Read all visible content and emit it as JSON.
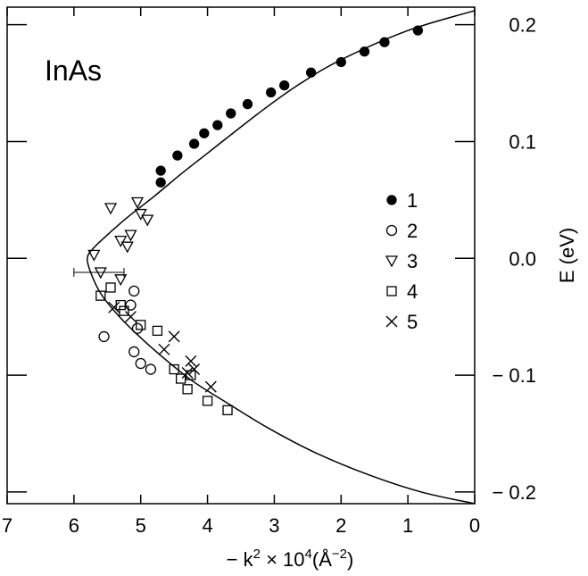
{
  "chart_data": {
    "type": "scatter",
    "panel_label": "InAs",
    "xlabel": {
      "prefix": "− k",
      "sup1": "2",
      "mid": " × 10",
      "sup2": "4",
      "unit_open": "(Å",
      "sup3": "−2",
      "unit_close": ")"
    },
    "ylabel": "E (eV)",
    "x_axis_reversed": true,
    "xlim": [
      0,
      7
    ],
    "ylim": [
      -0.21,
      0.215
    ],
    "x_ticks": [
      {
        "value": 7,
        "label": "7"
      },
      {
        "value": 6,
        "label": "6"
      },
      {
        "value": 5,
        "label": "5"
      },
      {
        "value": 4,
        "label": "4"
      },
      {
        "value": 3,
        "label": "3"
      },
      {
        "value": 2,
        "label": "2"
      },
      {
        "value": 1,
        "label": "1"
      },
      {
        "value": 0,
        "label": "0"
      }
    ],
    "y_ticks": [
      {
        "value": 0.2,
        "label": "0.2"
      },
      {
        "value": 0.1,
        "label": "0.1"
      },
      {
        "value": 0.0,
        "label": "0.0"
      },
      {
        "value": -0.1,
        "label": "− 0.1"
      },
      {
        "value": -0.2,
        "label": "− 0.2"
      }
    ],
    "y_axis_side": "right",
    "legend_position": "right",
    "curve": {
      "description": "continuous fit",
      "points": [
        [
          0.0,
          0.212
        ],
        [
          1.0,
          0.195
        ],
        [
          2.0,
          0.17
        ],
        [
          2.6,
          0.15
        ],
        [
          3.1,
          0.13
        ],
        [
          3.6,
          0.108
        ],
        [
          4.0,
          0.09
        ],
        [
          4.4,
          0.072
        ],
        [
          4.8,
          0.053
        ],
        [
          5.2,
          0.035
        ],
        [
          5.5,
          0.02
        ],
        [
          5.72,
          0.008
        ],
        [
          5.8,
          0.0
        ],
        [
          5.75,
          -0.012
        ],
        [
          5.6,
          -0.03
        ],
        [
          5.35,
          -0.048
        ],
        [
          5.0,
          -0.068
        ],
        [
          4.6,
          -0.088
        ],
        [
          4.2,
          -0.106
        ],
        [
          3.7,
          -0.124
        ],
        [
          3.1,
          -0.145
        ],
        [
          2.4,
          -0.166
        ],
        [
          1.6,
          -0.185
        ],
        [
          0.8,
          -0.2
        ],
        [
          0.0,
          -0.21
        ]
      ]
    },
    "series": [
      {
        "name": "1",
        "marker": "filled-circle",
        "points": [
          [
            0.85,
            0.195
          ],
          [
            1.35,
            0.185
          ],
          [
            1.65,
            0.177
          ],
          [
            2.0,
            0.168
          ],
          [
            2.45,
            0.159
          ],
          [
            2.85,
            0.148
          ],
          [
            3.05,
            0.142
          ],
          [
            3.4,
            0.132
          ],
          [
            3.65,
            0.124
          ],
          [
            3.85,
            0.114
          ],
          [
            4.05,
            0.107
          ],
          [
            4.2,
            0.098
          ],
          [
            4.45,
            0.088
          ],
          [
            4.7,
            0.075
          ],
          [
            4.7,
            0.065
          ]
        ]
      },
      {
        "name": "2",
        "marker": "open-circle",
        "points": [
          [
            5.1,
            -0.028
          ],
          [
            5.15,
            -0.04
          ],
          [
            5.05,
            -0.06
          ],
          [
            5.55,
            -0.067
          ],
          [
            5.1,
            -0.08
          ],
          [
            5.0,
            -0.09
          ],
          [
            4.85,
            -0.095
          ]
        ]
      },
      {
        "name": "3",
        "marker": "open-triangle-down",
        "points": [
          [
            5.45,
            0.043
          ],
          [
            5.05,
            0.048
          ],
          [
            5.0,
            0.038
          ],
          [
            4.9,
            0.033
          ],
          [
            5.15,
            0.02
          ],
          [
            5.3,
            0.015
          ],
          [
            5.2,
            0.01
          ],
          [
            5.7,
            0.003
          ],
          [
            5.6,
            -0.012
          ],
          [
            5.3,
            -0.018
          ]
        ]
      },
      {
        "name": "4",
        "marker": "open-square",
        "points": [
          [
            5.45,
            -0.025
          ],
          [
            5.6,
            -0.032
          ],
          [
            5.3,
            -0.04
          ],
          [
            5.25,
            -0.045
          ],
          [
            5.0,
            -0.057
          ],
          [
            4.75,
            -0.062
          ],
          [
            4.5,
            -0.095
          ],
          [
            4.4,
            -0.103
          ],
          [
            4.3,
            -0.112
          ],
          [
            4.0,
            -0.122
          ],
          [
            3.7,
            -0.13
          ],
          [
            4.25,
            -0.1
          ]
        ]
      },
      {
        "name": "5",
        "marker": "cross",
        "points": [
          [
            5.4,
            -0.042
          ],
          [
            5.15,
            -0.05
          ],
          [
            4.5,
            -0.067
          ],
          [
            4.65,
            -0.078
          ],
          [
            4.25,
            -0.088
          ],
          [
            4.2,
            -0.095
          ],
          [
            4.3,
            -0.098
          ],
          [
            3.95,
            -0.11
          ]
        ]
      }
    ],
    "error_bar": {
      "x": 5.6,
      "y": -0.012,
      "x_low": 6.0,
      "x_high": 5.25
    },
    "grid": false
  }
}
